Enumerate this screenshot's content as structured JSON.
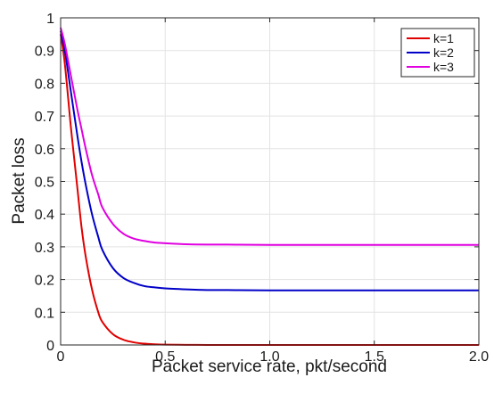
{
  "chart_data": {
    "type": "line",
    "xlabel": "Packet service rate, pkt/second",
    "ylabel": "Packet loss",
    "xlim": [
      0,
      2.0
    ],
    "ylim": [
      0,
      1
    ],
    "xticks": [
      "0",
      "0.5",
      "1.0",
      "1.5",
      "2.0"
    ],
    "yticks": [
      "0",
      "0.1",
      "0.2",
      "0.3",
      "0.4",
      "0.5",
      "0.6",
      "0.7",
      "0.8",
      "0.9",
      "1"
    ],
    "xtick_values": [
      0,
      0.5,
      1.0,
      1.5,
      2.0
    ],
    "ytick_values": [
      0,
      0.1,
      0.2,
      0.3,
      0.4,
      0.5,
      0.6,
      0.7,
      0.8,
      0.9,
      1.0
    ],
    "grid": true,
    "legend_position": "top-right",
    "series": [
      {
        "name": "k=1",
        "color": "#e00000",
        "x": [
          0.0,
          0.02,
          0.05,
          0.08,
          0.1,
          0.12,
          0.15,
          0.18,
          0.2,
          0.25,
          0.3,
          0.35,
          0.4,
          0.45,
          0.5,
          0.6,
          0.7,
          0.8,
          1.0,
          1.5,
          2.0
        ],
        "y": [
          0.95,
          0.86,
          0.66,
          0.48,
          0.36,
          0.27,
          0.17,
          0.1,
          0.07,
          0.033,
          0.016,
          0.008,
          0.004,
          0.002,
          0.001,
          0.0005,
          0.0,
          0.0,
          0.0,
          0.0,
          0.0
        ]
      },
      {
        "name": "k=2",
        "color": "#0000c8",
        "x": [
          0.0,
          0.02,
          0.05,
          0.08,
          0.1,
          0.12,
          0.15,
          0.18,
          0.2,
          0.25,
          0.3,
          0.35,
          0.4,
          0.45,
          0.5,
          0.6,
          0.7,
          0.8,
          1.0,
          1.5,
          2.0
        ],
        "y": [
          0.96,
          0.9,
          0.77,
          0.64,
          0.56,
          0.49,
          0.4,
          0.33,
          0.29,
          0.235,
          0.205,
          0.19,
          0.18,
          0.176,
          0.173,
          0.17,
          0.168,
          0.168,
          0.167,
          0.167,
          0.167
        ]
      },
      {
        "name": "k=3",
        "color": "#e000e0",
        "x": [
          0.0,
          0.02,
          0.05,
          0.08,
          0.1,
          0.12,
          0.15,
          0.18,
          0.2,
          0.25,
          0.3,
          0.35,
          0.4,
          0.45,
          0.5,
          0.6,
          0.7,
          0.8,
          1.0,
          1.5,
          2.0
        ],
        "y": [
          0.97,
          0.92,
          0.82,
          0.72,
          0.66,
          0.6,
          0.52,
          0.46,
          0.42,
          0.37,
          0.34,
          0.325,
          0.318,
          0.313,
          0.311,
          0.308,
          0.307,
          0.307,
          0.306,
          0.306,
          0.306
        ]
      }
    ]
  }
}
